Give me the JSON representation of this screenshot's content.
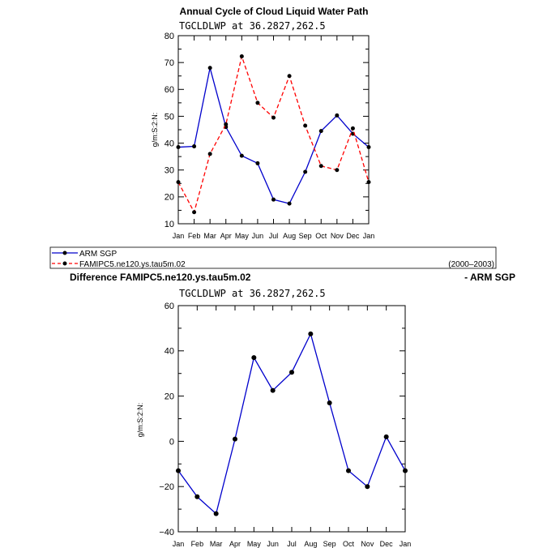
{
  "chart_data": [
    {
      "type": "line",
      "title": "Annual Cycle of Cloud Liquid Water Path",
      "subtitle": "TGCLDLWP at 36.2827,262.5",
      "ylabel": "g/m:S:2:N:",
      "xlabel": "",
      "ylim": [
        10,
        80
      ],
      "yticks": [
        "10",
        "20",
        "30",
        "40",
        "50",
        "60",
        "70",
        "80"
      ],
      "categories": [
        "Jan",
        "Feb",
        "Mar",
        "Apr",
        "May",
        "Jun",
        "Jul",
        "Aug",
        "Sep",
        "Oct",
        "Nov",
        "Dec",
        "Jan"
      ],
      "series": [
        {
          "name": "ARM SGP",
          "color": "#0000cc",
          "dash": "solid",
          "values": [
            38.5,
            38.8,
            68,
            46,
            35.3,
            32.5,
            19,
            17.5,
            29.3,
            44.5,
            50.3,
            43.5,
            38.5
          ]
        },
        {
          "name": "FAMIPC5.ne120.ys.tau5m.02",
          "color": "#ff0000",
          "dash": "dashed",
          "values": [
            25.5,
            14.3,
            36,
            47,
            72.3,
            55,
            49.5,
            65,
            46.5,
            31.5,
            30,
            45.5,
            25.5
          ]
        }
      ],
      "legend": {
        "period": "(2000–2003)",
        "placement": "below"
      }
    },
    {
      "type": "line",
      "title": "Difference FAMIPC5.ne120.ys.tau5m.02",
      "title_right": "- ARM SGP",
      "subtitle": "TGCLDLWP at 36.2827,262.5",
      "ylabel": "g/m:S:2:N:",
      "xlabel": "",
      "ylim": [
        -40,
        60
      ],
      "yticks": [
        "−40",
        "−20",
        "0",
        "20",
        "40",
        "60"
      ],
      "categories": [
        "Jan",
        "Feb",
        "Mar",
        "Apr",
        "May",
        "Jun",
        "Jul",
        "Aug",
        "Sep",
        "Oct",
        "Nov",
        "Dec",
        "Jan"
      ],
      "series": [
        {
          "name": "Difference",
          "color": "#0000cc",
          "dash": "solid",
          "values": [
            -13,
            -24.5,
            -32,
            1,
            37,
            22.5,
            30.5,
            47.5,
            17,
            -13,
            -20,
            2,
            -13
          ]
        }
      ]
    }
  ]
}
